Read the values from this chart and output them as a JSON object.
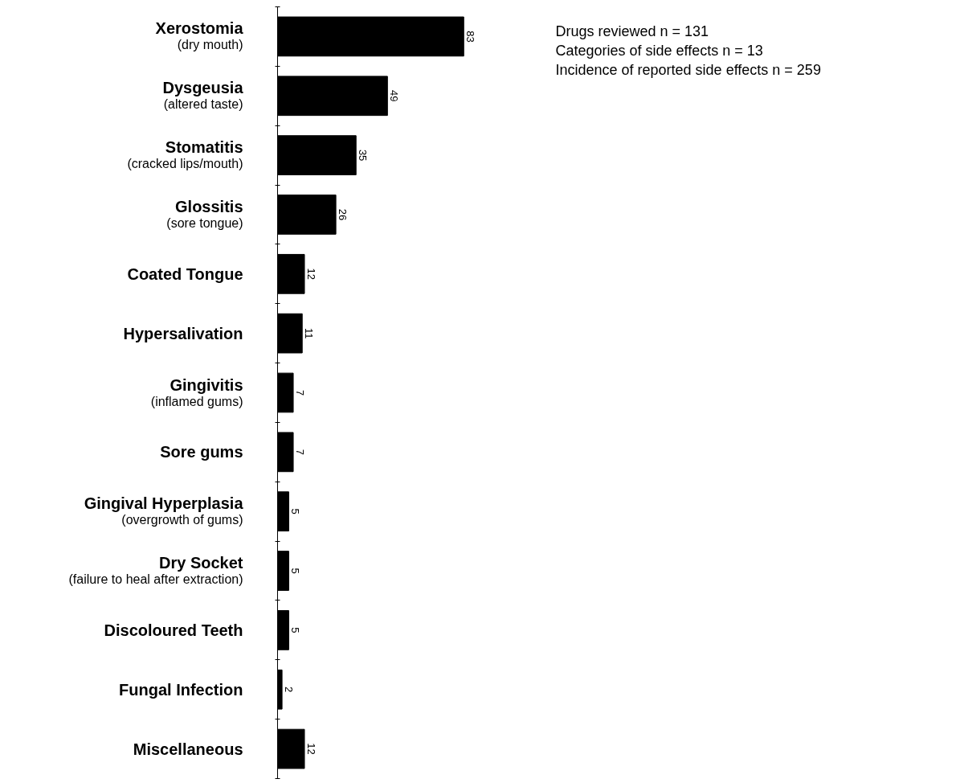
{
  "chart_data": {
    "type": "bar",
    "orientation": "horizontal",
    "data_labels": true,
    "tick_labels": "y",
    "categories": [
      "Xerostomia\n(dry mouth)",
      "Dysgeusia\n(altered taste)",
      "Stomatitis\n(cracked lips/mouth)",
      "Glossitis\n(sore tongue)",
      "Coated Tongue",
      "Hypersalivation",
      "Gingivitis\n(inflamed gums)",
      "Sore gums",
      "Gingival Hyperplasia\n(overgrowth of gums)",
      "Dry Socket\n(failure to heal after extraction)",
      "Discoloured Teeth",
      "Fungal Infection",
      "Miscellaneous"
    ],
    "values": [
      83,
      49,
      35,
      26,
      12,
      11,
      7,
      7,
      5,
      5,
      5,
      2,
      12
    ],
    "color": "#000000",
    "annotations": [
      "Drugs reviewed n = 131",
      "Categories of side effects n = 13",
      "Incidence of reported side effects n = 259"
    ]
  }
}
